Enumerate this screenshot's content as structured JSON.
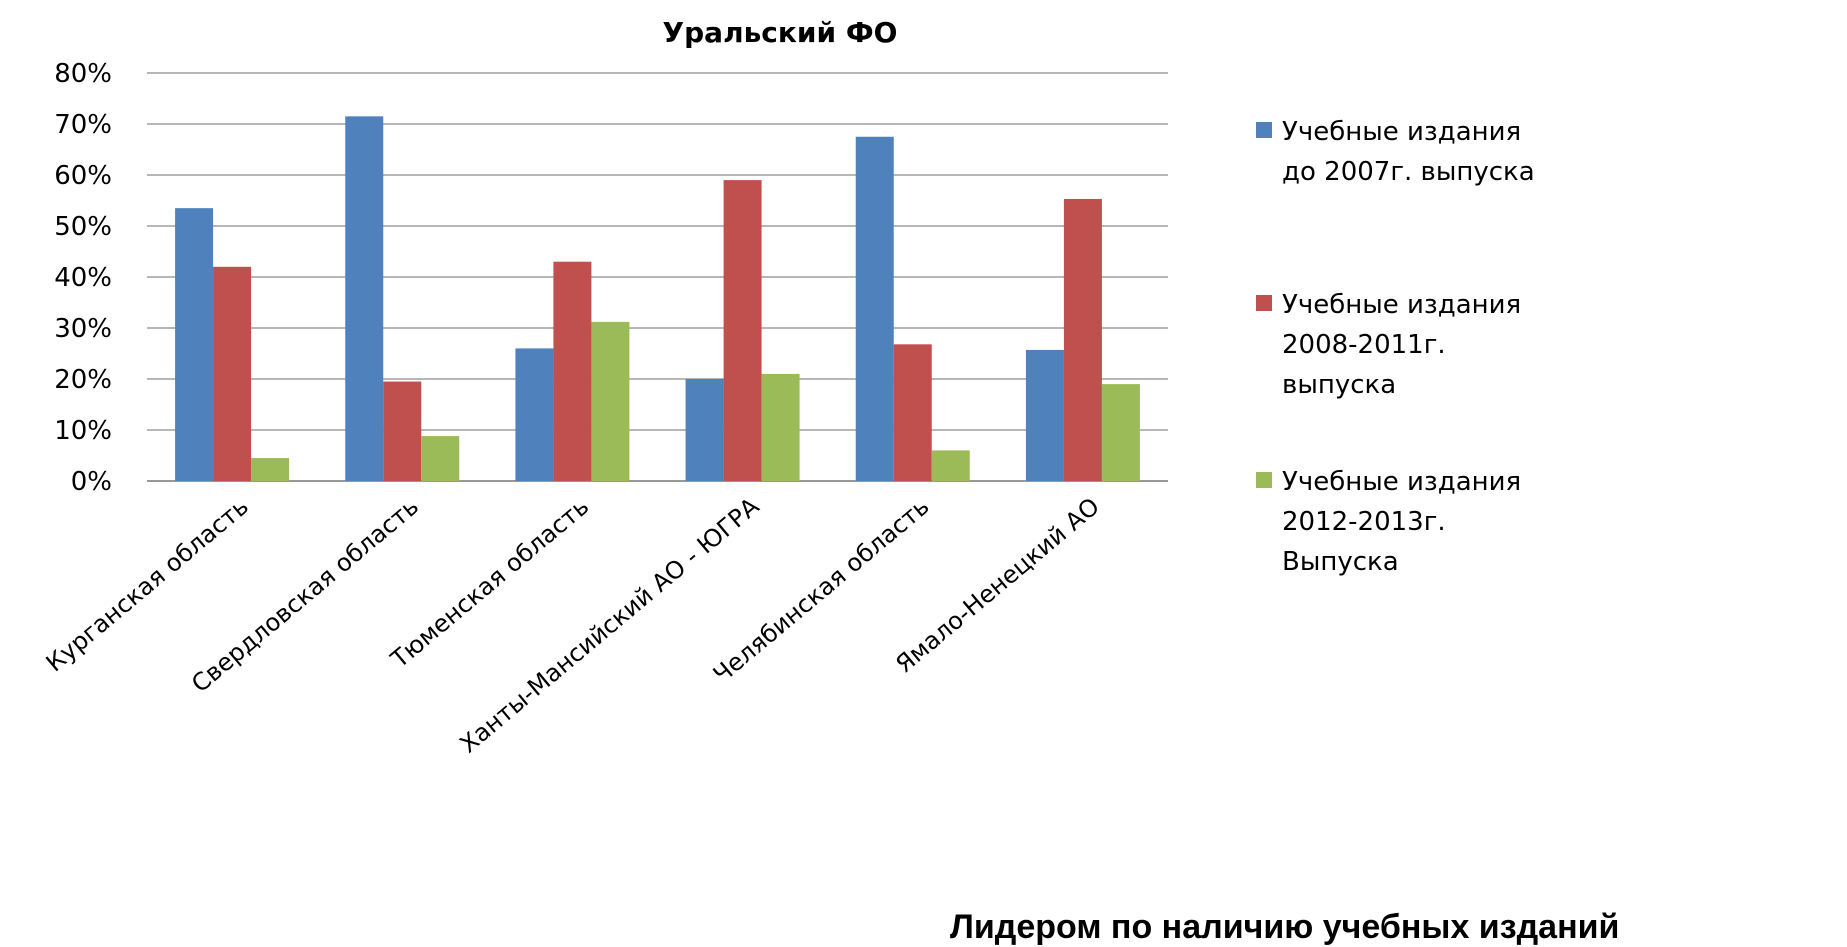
{
  "chart_data": {
    "type": "bar",
    "title": "Уральский ФО",
    "categories": [
      "Курганская область",
      "Свердловская область",
      "Тюменская область",
      "Ханты-Мансийский АО - ЮГРА",
      "Челябинская область",
      "Ямало-Ненецкий АО"
    ],
    "series": [
      {
        "name": "Учебные издания до 2007г. выпуска",
        "name_lines": [
          "Учебные издания",
          "до 2007г. выпуска"
        ],
        "color": "#4F81BD",
        "values": [
          0.535,
          0.715,
          0.26,
          0.2,
          0.675,
          0.257
        ]
      },
      {
        "name": "Учебные издания 2008-2011г. выпуска",
        "name_lines": [
          "Учебные издания",
          "2008-2011г.",
          "выпуска"
        ],
        "color": "#C0504D",
        "values": [
          0.42,
          0.195,
          0.43,
          0.59,
          0.268,
          0.553
        ]
      },
      {
        "name": "Учебные издания 2012-2013г. Выпуска",
        "name_lines": [
          "Учебные издания",
          "2012-2013г.",
          "Выпуска"
        ],
        "color": "#9BBB59",
        "values": [
          0.045,
          0.088,
          0.312,
          0.21,
          0.06,
          0.19
        ]
      }
    ],
    "y_ticks": [
      "0%",
      "10%",
      "20%",
      "30%",
      "40%",
      "50%",
      "60%",
      "70%",
      "80%"
    ],
    "ylim": [
      0,
      0.8
    ],
    "grid": true,
    "legend_position": "right"
  },
  "caption": "Лидером по наличию учебных изданий"
}
